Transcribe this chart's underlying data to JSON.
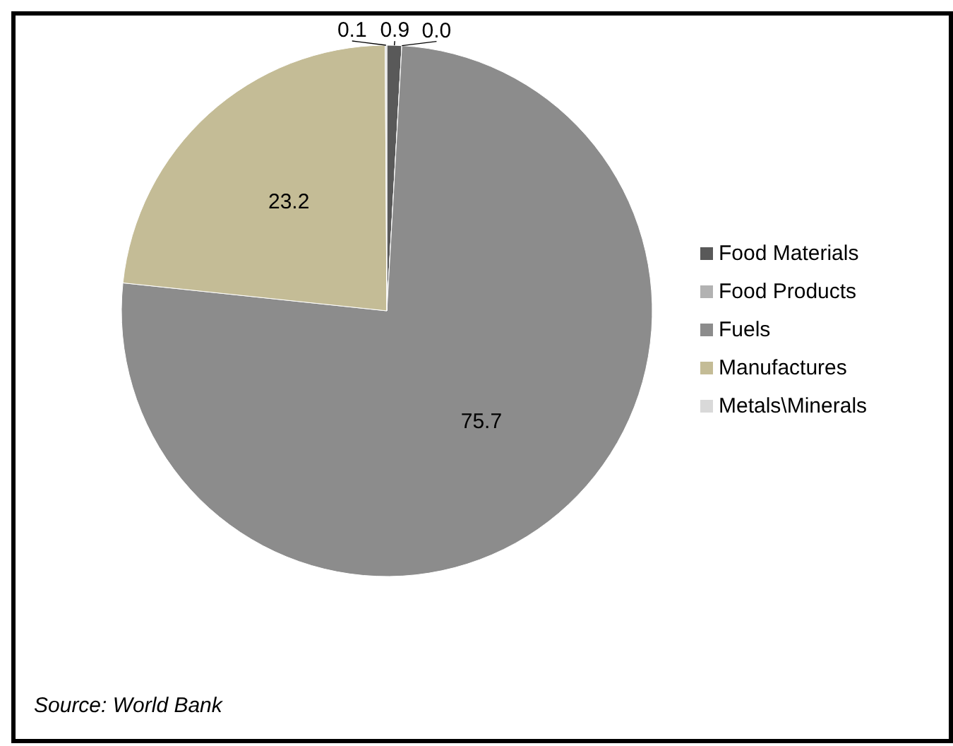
{
  "chart_data": {
    "type": "pie",
    "categories": [
      "Food Materials",
      "Food Products",
      "Fuels",
      "Manufactures",
      "Metals\\Minerals"
    ],
    "values": [
      0.9,
      0.0,
      75.7,
      23.2,
      0.1
    ],
    "colors": [
      "#595959",
      "#b2b2b2",
      "#8c8c8c",
      "#c4bc96",
      "#d9d9d9"
    ],
    "value_labels": [
      "0.9",
      "0.0",
      "75.7",
      "23.2",
      "0.1"
    ],
    "legend": "right",
    "annotations": [
      "Source: World Bank"
    ]
  }
}
